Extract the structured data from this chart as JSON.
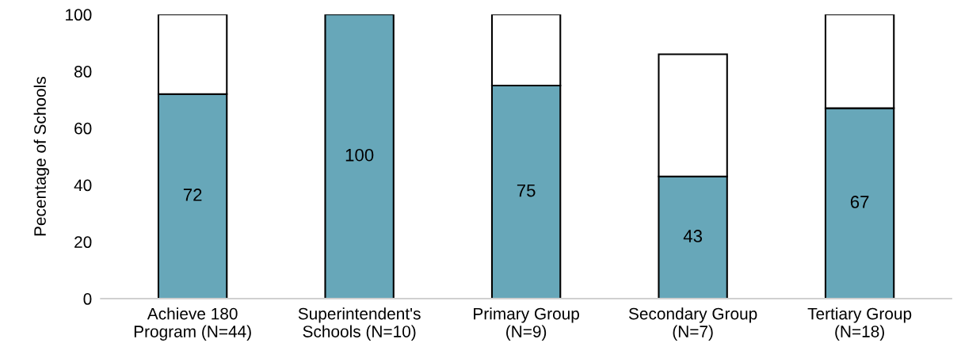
{
  "chart_data": {
    "type": "bar",
    "stacked": true,
    "ylabel": "Pecentage of Schools",
    "categories": [
      "Achieve 180\nProgram (N=44)",
      "Superintendent's\nSchools (N=10)",
      "Primary Group\n(N=9)",
      "Secondary Group\n(N=7)",
      "Tertiary Group\n(N=18)"
    ],
    "series": [
      {
        "color": "#67a7b9",
        "values": [
          72,
          100,
          75,
          43,
          67
        ],
        "value_labels": [
          "72",
          "100",
          "75",
          "43",
          "67"
        ]
      },
      {
        "color": "#ffffff",
        "values": [
          28,
          null,
          25,
          43,
          33
        ]
      }
    ],
    "ylim": [
      0,
      100
    ],
    "yticks": [
      0,
      20,
      40,
      60,
      80,
      100
    ],
    "grid": false
  }
}
